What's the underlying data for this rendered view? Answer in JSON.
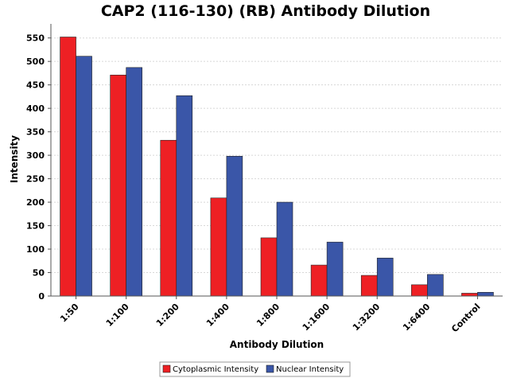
{
  "chart_data": {
    "type": "bar",
    "title": "CAP2 (116-130) (RB) Antibody Dilution",
    "xlabel": "Antibody Dilution",
    "ylabel": "Intensity",
    "categories": [
      "1:50",
      "1:100",
      "1:200",
      "1:400",
      "1:800",
      "1:1600",
      "1:3200",
      "1:6400",
      "Control"
    ],
    "series": [
      {
        "name": "Cytoplasmic Intensity",
        "color": "#ee2024",
        "values": [
          552,
          471,
          332,
          209,
          124,
          66,
          44,
          24,
          6
        ]
      },
      {
        "name": "Nuclear Intensity",
        "color": "#3a56a8",
        "values": [
          511,
          487,
          427,
          298,
          200,
          115,
          81,
          46,
          8
        ]
      }
    ],
    "ylim": [
      0,
      580
    ],
    "yticks": [
      0,
      50,
      100,
      150,
      200,
      250,
      300,
      350,
      400,
      450,
      500,
      550
    ],
    "grid": true,
    "legend": "bottom"
  }
}
